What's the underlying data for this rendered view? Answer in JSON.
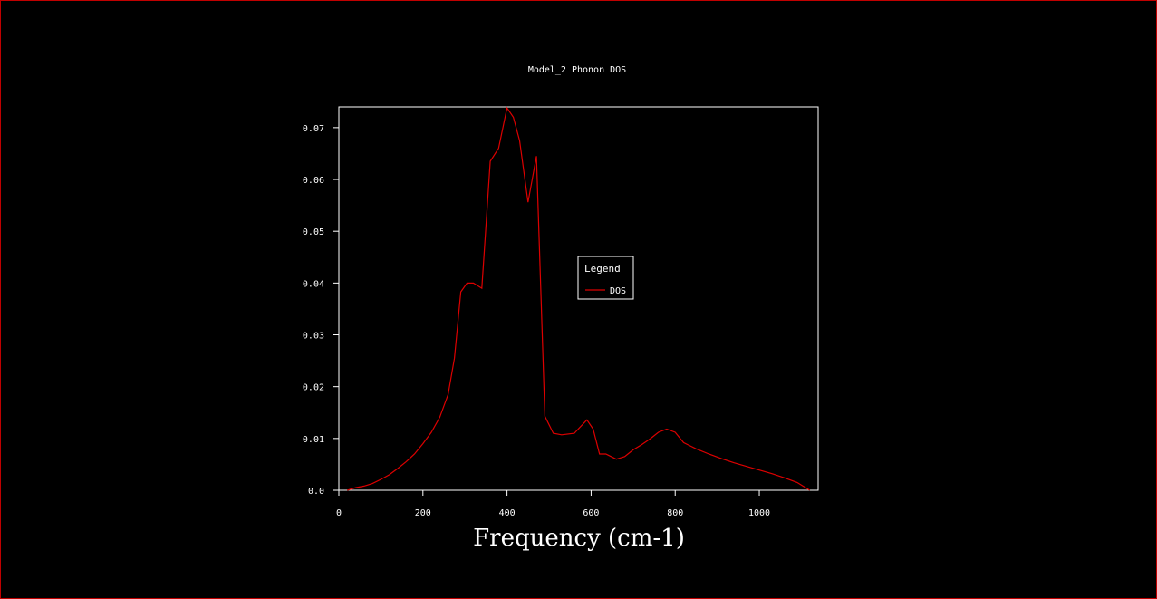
{
  "chart_data": {
    "type": "line",
    "title": "Model_2 Phonon DOS",
    "xlabel": "Frequency (cm-1)",
    "ylabel": "",
    "xlim": [
      0,
      1140
    ],
    "ylim": [
      0,
      0.074
    ],
    "x_ticks": [
      "0",
      "200",
      "400",
      "600",
      "800",
      "1000"
    ],
    "x_tick_values": [
      0,
      200,
      400,
      600,
      800,
      1000
    ],
    "y_ticks": [
      "0.0",
      "0.01",
      "0.02",
      "0.03",
      "0.04",
      "0.05",
      "0.06",
      "0.07"
    ],
    "y_tick_values": [
      0,
      0.01,
      0.02,
      0.03,
      0.04,
      0.05,
      0.06,
      0.07
    ],
    "grid": false,
    "legend": {
      "title": "Legend",
      "position": "center-right"
    },
    "series": [
      {
        "name": "DOS",
        "color": "#dd0000",
        "x": [
          20,
          40,
          60,
          80,
          100,
          120,
          140,
          160,
          180,
          200,
          220,
          240,
          260,
          275,
          290,
          305,
          320,
          340,
          360,
          380,
          400,
          415,
          430,
          450,
          470,
          490,
          510,
          530,
          560,
          590,
          605,
          620,
          635,
          660,
          680,
          700,
          720,
          740,
          760,
          780,
          800,
          820,
          850,
          880,
          910,
          940,
          970,
          1000,
          1030,
          1060,
          1090,
          1120
        ],
        "y": [
          0.0,
          0.0005,
          0.0008,
          0.0013,
          0.0021,
          0.003,
          0.0042,
          0.0055,
          0.007,
          0.009,
          0.0112,
          0.0141,
          0.0185,
          0.0255,
          0.0383,
          0.04,
          0.04,
          0.039,
          0.0635,
          0.066,
          0.0738,
          0.072,
          0.0675,
          0.0556,
          0.0645,
          0.0143,
          0.011,
          0.0107,
          0.011,
          0.0136,
          0.0118,
          0.007,
          0.007,
          0.006,
          0.0065,
          0.0078,
          0.0088,
          0.0099,
          0.0112,
          0.0118,
          0.0112,
          0.0092,
          0.008,
          0.007,
          0.0061,
          0.0053,
          0.0046,
          0.0039,
          0.0032,
          0.0024,
          0.0015,
          0.0
        ]
      }
    ]
  }
}
